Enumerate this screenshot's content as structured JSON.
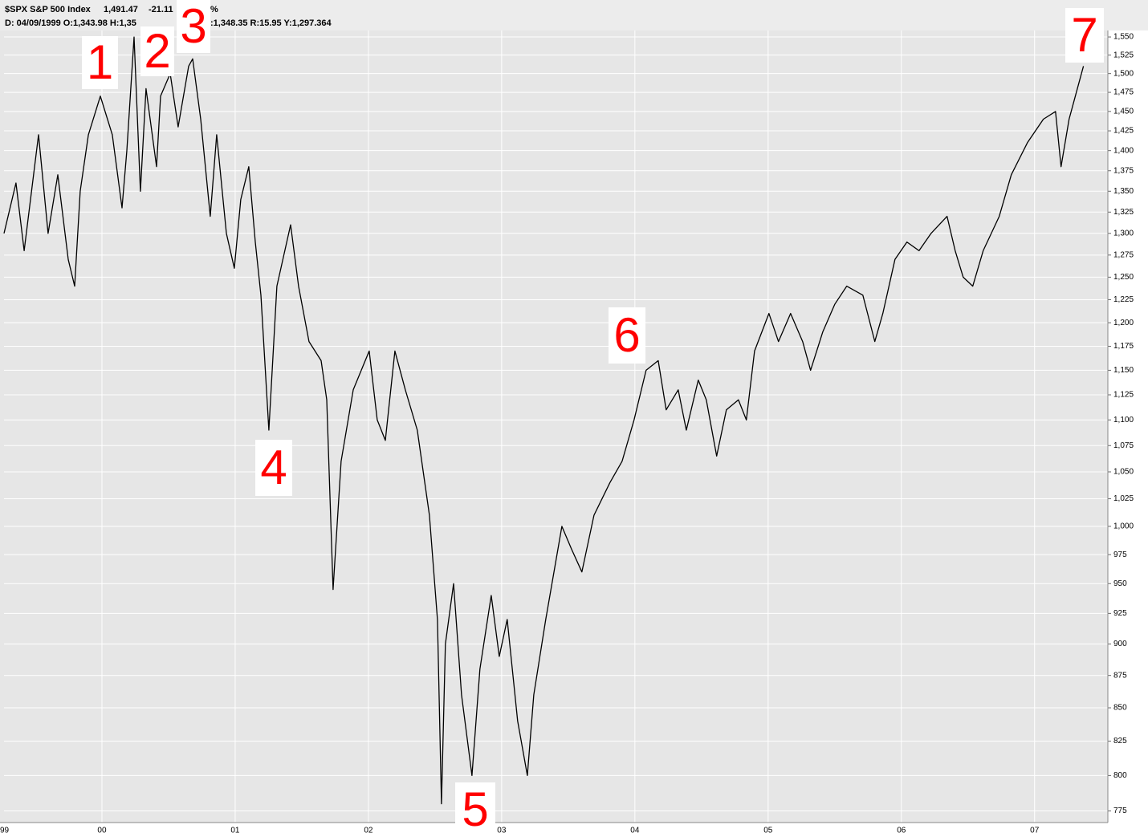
{
  "chart_data": {
    "type": "line",
    "title": "$SPX S&P 500 Index",
    "header": [
      "1,491.47",
      "-21.11",
      "%"
    ],
    "subheader": [
      "D: 04/09/1999 O:1,343.98 H:1,35",
      ":1,348.35 R:15.95 Y:1,297.364"
    ],
    "annotations": [
      "1",
      "2",
      "3",
      "4",
      "5",
      "6",
      "7"
    ],
    "color": "#000000",
    "log_y": true,
    "grid": true,
    "x": [
      1999.265,
      1999.355,
      1999.416,
      1999.524,
      1999.596,
      1999.669,
      1999.747,
      1999.795,
      1999.837,
      1999.898,
      1999.988,
      2000.078,
      2000.151,
      2000.187,
      2000.241,
      2000.289,
      2000.331,
      2000.41,
      2000.44,
      2000.512,
      2000.572,
      2000.651,
      2000.681,
      2000.741,
      2000.813,
      2000.861,
      2000.934,
      2000.994,
      2001.042,
      2001.102,
      2001.151,
      2001.193,
      2001.253,
      2001.313,
      2001.416,
      2001.476,
      2001.554,
      2001.645,
      2001.687,
      2001.735,
      2001.795,
      2001.886,
      2002.006,
      2002.066,
      2002.127,
      2002.199,
      2002.277,
      2002.367,
      2002.458,
      2002.518,
      2002.548,
      2002.578,
      2002.639,
      2002.699,
      2002.777,
      2002.837,
      2002.922,
      2002.982,
      2003.042,
      2003.12,
      2003.193,
      2003.241,
      2003.331,
      2003.452,
      2003.524,
      2003.602,
      2003.693,
      2003.813,
      2003.904,
      2003.994,
      2004.084,
      2004.175,
      2004.235,
      2004.325,
      2004.386,
      2004.476,
      2004.536,
      2004.614,
      2004.687,
      2004.777,
      2004.837,
      2004.898,
      2005.006,
      2005.078,
      2005.169,
      2005.259,
      2005.319,
      2005.41,
      2005.5,
      2005.59,
      2005.711,
      2005.801,
      2005.861,
      2005.952,
      2006.042,
      2006.133,
      2006.223,
      2006.343,
      2006.404,
      2006.464,
      2006.536,
      2006.614,
      2006.735,
      2006.825,
      2006.946,
      2007.066,
      2007.157,
      2007.199,
      2007.259,
      2007.367
    ],
    "values": [
      1300,
      1360,
      1280,
      1420,
      1300,
      1370,
      1270,
      1240,
      1350,
      1420,
      1470,
      1420,
      1330,
      1400,
      1550,
      1350,
      1480,
      1380,
      1470,
      1500,
      1430,
      1510,
      1520,
      1440,
      1320,
      1420,
      1300,
      1260,
      1340,
      1380,
      1290,
      1230,
      1090,
      1240,
      1310,
      1240,
      1180,
      1160,
      1120,
      945,
      1060,
      1130,
      1170,
      1100,
      1080,
      1170,
      1130,
      1090,
      1010,
      920,
      780,
      900,
      950,
      860,
      800,
      880,
      940,
      890,
      920,
      840,
      800,
      860,
      920,
      1000,
      980,
      960,
      1010,
      1040,
      1060,
      1100,
      1150,
      1160,
      1110,
      1130,
      1090,
      1140,
      1120,
      1065,
      1110,
      1120,
      1100,
      1170,
      1210,
      1180,
      1210,
      1180,
      1150,
      1190,
      1220,
      1240,
      1230,
      1180,
      1210,
      1270,
      1290,
      1280,
      1300,
      1320,
      1280,
      1250,
      1240,
      1280,
      1320,
      1370,
      1410,
      1440,
      1450,
      1380,
      1440,
      1510
    ],
    "xlim": [
      1999.265,
      2007.55
    ],
    "xticks": [
      {
        "value": 1999,
        "label": "99"
      },
      {
        "value": 2000,
        "label": "00"
      },
      {
        "value": 2001,
        "label": "01"
      },
      {
        "value": 2002,
        "label": "02"
      },
      {
        "value": 2003,
        "label": "03"
      },
      {
        "value": 2004,
        "label": "04"
      },
      {
        "value": 2005,
        "label": "05"
      },
      {
        "value": 2006,
        "label": "06"
      },
      {
        "value": 2007,
        "label": "07"
      }
    ],
    "ylim": [
      767,
      1559
    ],
    "yticks": [
      775,
      800,
      825,
      850,
      875,
      900,
      925,
      950,
      975,
      {
        "value": 1000,
        "label": "1,000"
      },
      {
        "value": 1025,
        "label": "1,025"
      },
      {
        "value": 1050,
        "label": "1,050"
      },
      {
        "value": 1075,
        "label": "1,075"
      },
      {
        "value": 1100,
        "label": "1,100"
      },
      {
        "value": 1125,
        "label": "1,125"
      },
      {
        "value": 1150,
        "label": "1,150"
      },
      {
        "value": 1175,
        "label": "1,175"
      },
      {
        "value": 1200,
        "label": "1,200"
      },
      {
        "value": 1225,
        "label": "1,225"
      },
      {
        "value": 1250,
        "label": "1,250"
      },
      {
        "value": 1275,
        "label": "1,275"
      },
      {
        "value": 1300,
        "label": "1,300"
      },
      {
        "value": 1325,
        "label": "1,325"
      },
      {
        "value": 1350,
        "label": "1,350"
      },
      {
        "value": 1375,
        "label": "1,375"
      },
      {
        "value": 1400,
        "label": "1,400"
      },
      {
        "value": 1425,
        "label": "1,425"
      },
      {
        "value": 1450,
        "label": "1,450"
      },
      {
        "value": 1475,
        "label": "1,475"
      },
      {
        "value": 1500,
        "label": "1,500"
      },
      {
        "value": 1525,
        "label": "1,525"
      },
      {
        "value": 1550,
        "label": "1,550"
      }
    ]
  }
}
